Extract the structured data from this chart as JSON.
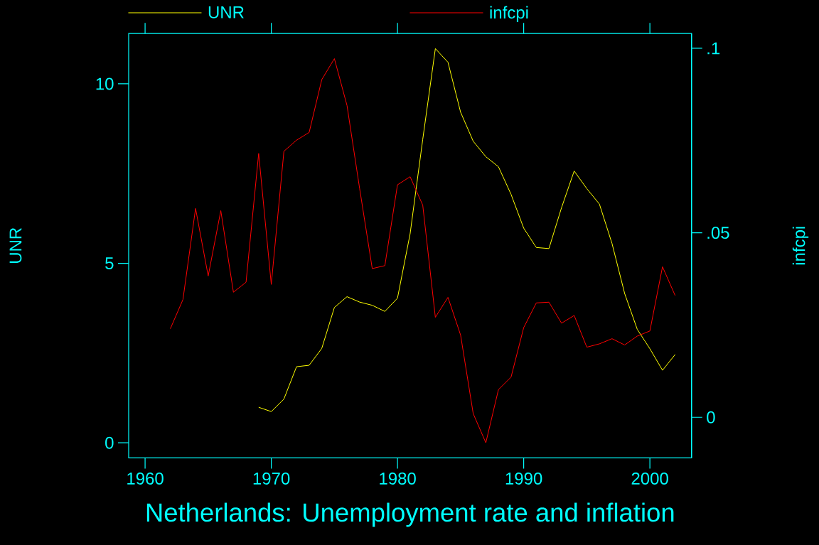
{
  "chart_data": {
    "type": "line",
    "title": "Netherlands: Unemployment rate and inflation",
    "ylabel": "UNR",
    "y2label": "infcpi",
    "series": [
      {
        "name": "UNR",
        "color": "#ffff00",
        "x": [
          1969,
          1970,
          1971,
          1972,
          1973,
          1974,
          1975,
          1976,
          1977,
          1978,
          1979,
          1980,
          1981,
          1982,
          1983,
          1984,
          1985,
          1986,
          1987,
          1988,
          1989,
          1990,
          1991,
          1992,
          1993,
          1994,
          1995,
          1996,
          1997,
          1998,
          1999,
          2000,
          2001,
          2002
        ],
        "values": [
          0.99,
          0.87,
          1.22,
          2.12,
          2.16,
          2.63,
          3.77,
          4.07,
          3.92,
          3.83,
          3.66,
          4.03,
          5.82,
          8.45,
          10.98,
          10.6,
          9.21,
          8.4,
          7.97,
          7.69,
          6.92,
          5.98,
          5.44,
          5.41,
          6.55,
          7.57,
          7.08,
          6.65,
          5.55,
          4.16,
          3.16,
          2.62,
          2.02,
          2.46
        ]
      },
      {
        "name": "infcpi",
        "color": "#ff0000",
        "axis": "y2",
        "x": [
          1962,
          1963,
          1964,
          1965,
          1966,
          1967,
          1968,
          1969,
          1970,
          1971,
          1972,
          1973,
          1974,
          1975,
          1976,
          1977,
          1978,
          1979,
          1980,
          1981,
          1982,
          1983,
          1984,
          1985,
          1986,
          1987,
          1988,
          1989,
          1990,
          1991,
          1992,
          1993,
          1994,
          1995,
          1996,
          1997,
          1998,
          1999,
          2000,
          2001,
          2002
        ],
        "values": [
          0.024,
          0.0319,
          0.0566,
          0.0383,
          0.056,
          0.0339,
          0.0366,
          0.0715,
          0.036,
          0.0721,
          0.0751,
          0.0772,
          0.0915,
          0.0972,
          0.0845,
          0.062,
          0.0403,
          0.0411,
          0.063,
          0.0652,
          0.0575,
          0.0271,
          0.0325,
          0.0223,
          0.001,
          -0.0069,
          0.0075,
          0.0109,
          0.0243,
          0.031,
          0.0312,
          0.0255,
          0.0276,
          0.019,
          0.0199,
          0.0213,
          0.0196,
          0.022,
          0.0234,
          0.0408,
          0.033
        ]
      }
    ],
    "xlim": [
      1958.7,
      2003.3
    ],
    "xticks": [
      1960,
      1970,
      1980,
      1990,
      2000
    ],
    "ylim": [
      -0.42,
      11.4
    ],
    "yticks": [
      0,
      5,
      10
    ],
    "y2lim": [
      -0.011,
      0.104
    ],
    "y2ticks": [
      {
        "value": 0,
        "label": "0"
      },
      {
        "value": 0.05,
        "label": ".05"
      },
      {
        "value": 0.1,
        "label": ".1"
      }
    ],
    "legend": "top"
  }
}
